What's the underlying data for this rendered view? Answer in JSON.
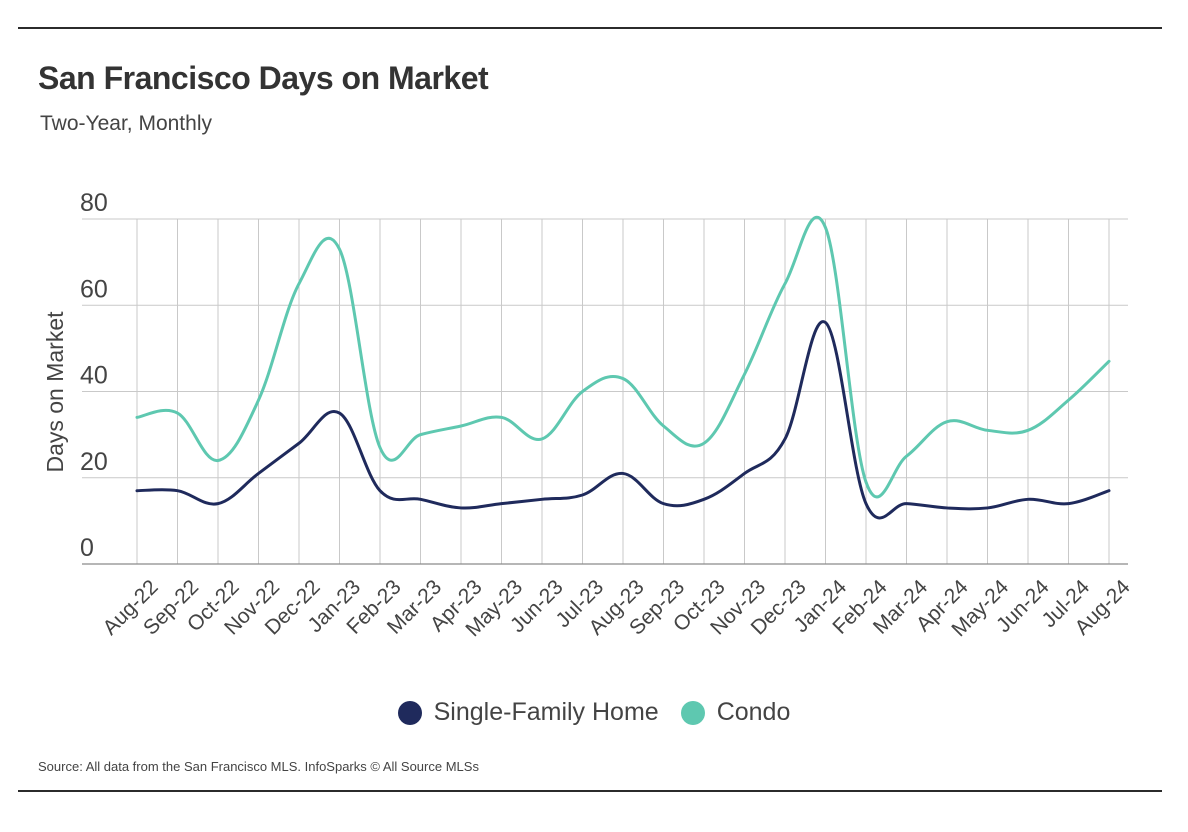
{
  "header": {
    "title": "San Francisco Days on Market",
    "subtitle": "Two-Year, Monthly"
  },
  "footer": {
    "source": "Source:  All data from the San Francisco MLS. InfoSparks © All Source MLSs"
  },
  "chart_data": {
    "type": "line",
    "title": "San Francisco Days on Market",
    "subtitle": "Two-Year, Monthly",
    "xlabel": "",
    "ylabel": "Days on Market",
    "ylim": [
      0,
      80
    ],
    "yticks": [
      0,
      20,
      40,
      60,
      80
    ],
    "grid": true,
    "legend": "bottom-center",
    "categories": [
      "Aug-22",
      "Sep-22",
      "Oct-22",
      "Nov-22",
      "Dec-22",
      "Jan-23",
      "Feb-23",
      "Mar-23",
      "Apr-23",
      "May-23",
      "Jun-23",
      "Jul-23",
      "Aug-23",
      "Sep-23",
      "Oct-23",
      "Nov-23",
      "Dec-23",
      "Jan-24",
      "Feb-24",
      "Mar-24",
      "Apr-24",
      "May-24",
      "Jun-24",
      "Jul-24",
      "Aug-24"
    ],
    "series": [
      {
        "name": "Single-Family Home",
        "color": "#1f2a5c",
        "values": [
          17,
          17,
          14,
          21,
          28,
          35,
          17,
          15,
          13,
          14,
          15,
          16,
          21,
          14,
          15,
          21,
          29,
          56,
          14,
          14,
          13,
          13,
          15,
          14,
          17
        ]
      },
      {
        "name": "Condo",
        "color": "#5ec8b0",
        "values": [
          34,
          35,
          24,
          38,
          65,
          73,
          27,
          30,
          32,
          34,
          29,
          40,
          43,
          32,
          28,
          44,
          65,
          78,
          19,
          25,
          33,
          31,
          31,
          38,
          47
        ]
      }
    ]
  }
}
